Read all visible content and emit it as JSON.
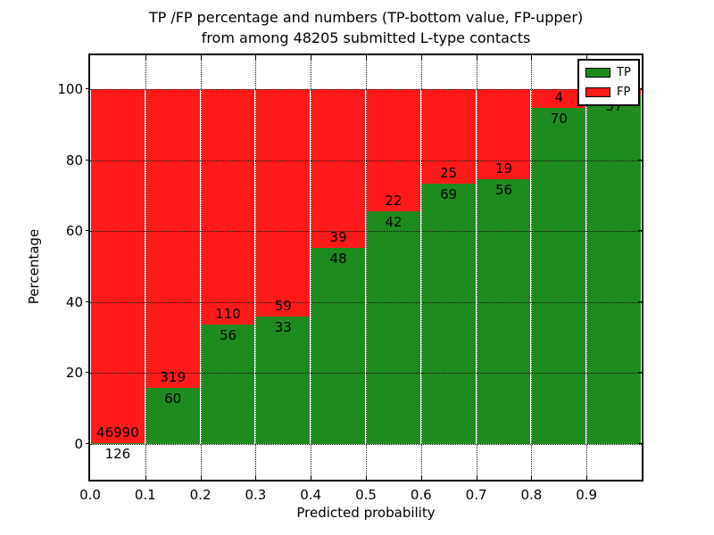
{
  "chart_data": {
    "type": "bar",
    "stacked": true,
    "normalized_to_percent": true,
    "title_lines": [
      "TP /FP percentage and numbers (TP-bottom value, FP-upper)",
      "from among 48205 submitted L-type contacts"
    ],
    "total_submitted_shown_in_title": 48205,
    "xlabel": "Predicted probability",
    "ylabel": "Percentage",
    "x_tick_labels": [
      "0.0",
      "0.1",
      "0.2",
      "0.3",
      "0.4",
      "0.5",
      "0.6",
      "0.7",
      "0.8",
      "0.9"
    ],
    "y_ticks": [
      0,
      20,
      40,
      60,
      80,
      100
    ],
    "xlim": [
      0.0,
      1.0
    ],
    "ylim": [
      -10,
      110
    ],
    "grid": true,
    "grid_style": "dotted",
    "legend": {
      "position": "upper right",
      "entries": [
        {
          "label": "TP",
          "color": "#1e8b1e"
        },
        {
          "label": "FP",
          "color": "#ff1a1a"
        }
      ]
    },
    "categories": [
      "0.0-0.1",
      "0.1-0.2",
      "0.2-0.3",
      "0.3-0.4",
      "0.4-0.5",
      "0.5-0.6",
      "0.6-0.7",
      "0.7-0.8",
      "0.8-0.9",
      "0.9-1.0"
    ],
    "series": [
      {
        "name": "TP",
        "values": [
          126,
          60,
          56,
          33,
          48,
          42,
          69,
          56,
          70,
          57
        ]
      },
      {
        "name": "FP",
        "values": [
          46990,
          319,
          110,
          59,
          39,
          22,
          25,
          19,
          4,
          null
        ]
      }
    ],
    "bars": [
      {
        "tp_label": "126",
        "fp_label": "46990",
        "tp_pct": 0.27
      },
      {
        "tp_label": "60",
        "fp_label": "319",
        "tp_pct": 15.8
      },
      {
        "tp_label": "56",
        "fp_label": "110",
        "tp_pct": 33.7
      },
      {
        "tp_label": "33",
        "fp_label": "59",
        "tp_pct": 35.9
      },
      {
        "tp_label": "48",
        "fp_label": "39",
        "tp_pct": 55.2
      },
      {
        "tp_label": "42",
        "fp_label": "22",
        "tp_pct": 65.6
      },
      {
        "tp_label": "69",
        "fp_label": "25",
        "tp_pct": 73.4
      },
      {
        "tp_label": "56",
        "fp_label": "19",
        "tp_pct": 74.7
      },
      {
        "tp_label": "70",
        "fp_label": "4",
        "tp_pct": 94.6
      },
      {
        "tp_label": "57",
        "fp_label": "",
        "tp_pct": 98.3
      }
    ],
    "colors": {
      "tp": "#1e8b1e",
      "fp": "#ff1a1a"
    }
  }
}
